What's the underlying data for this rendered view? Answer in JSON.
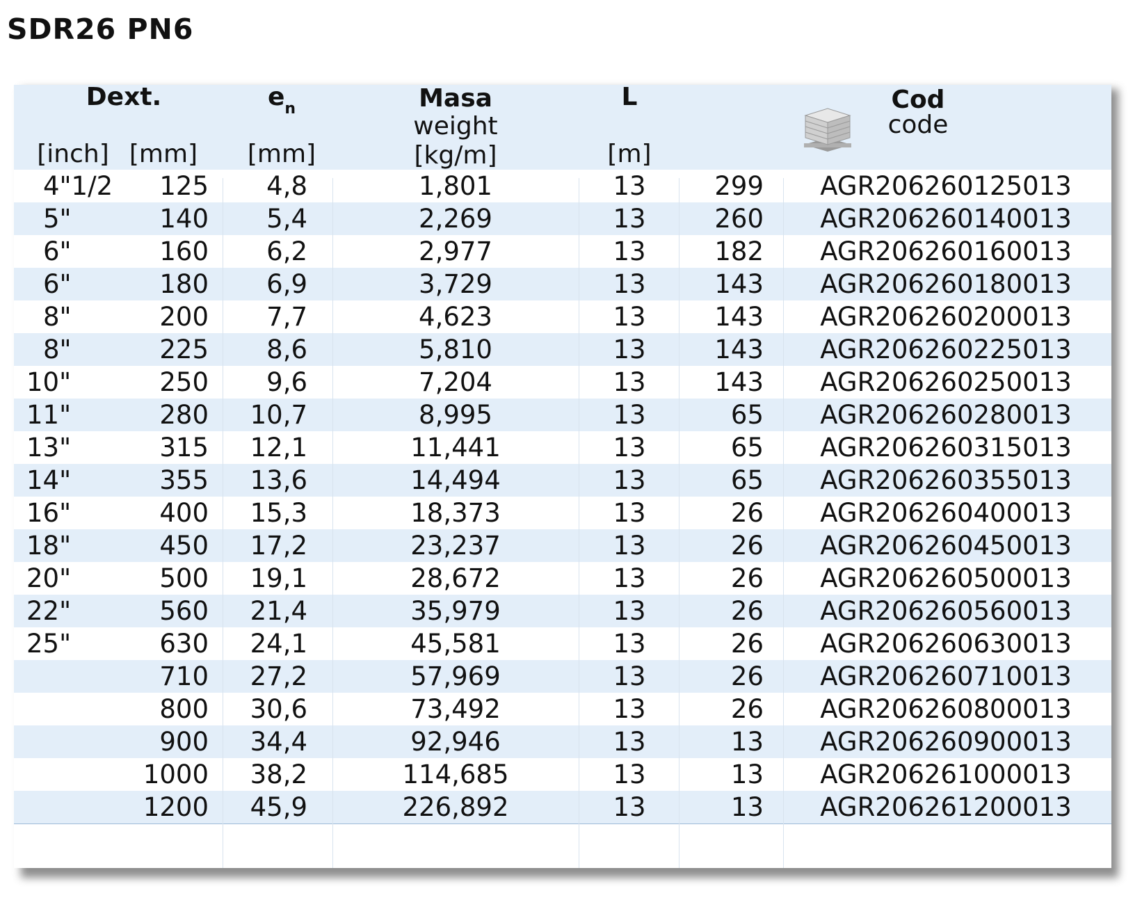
{
  "title": "SDR26 PN6",
  "header": {
    "dext": "Dext.",
    "en_main": "e",
    "en_sub": "n",
    "masa": "Masa",
    "weight": "weight",
    "inch_unit": "[inch]",
    "mm_unit": "[mm]",
    "en_unit": "[mm]",
    "kgm_unit": "[kg/m]",
    "l": "L",
    "m_unit": "[m]",
    "cod": "Cod",
    "code": "code",
    "pallet_icon": "pallet-stack-icon"
  },
  "colors": {
    "row_alt": "#e3eef9",
    "row_border": "#9dbbd8"
  },
  "rows": [
    {
      "inch": "4\"1/2",
      "mm": "125",
      "en": "4,8",
      "weight": "1,801",
      "l": "13",
      "qty": "299",
      "code": "AGR206260125013"
    },
    {
      "inch": "5\"",
      "mm": "140",
      "en": "5,4",
      "weight": "2,269",
      "l": "13",
      "qty": "260",
      "code": "AGR206260140013"
    },
    {
      "inch": "6\"",
      "mm": "160",
      "en": "6,2",
      "weight": "2,977",
      "l": "13",
      "qty": "182",
      "code": "AGR206260160013"
    },
    {
      "inch": "6\"",
      "mm": "180",
      "en": "6,9",
      "weight": "3,729",
      "l": "13",
      "qty": "143",
      "code": "AGR206260180013"
    },
    {
      "inch": "8\"",
      "mm": "200",
      "en": "7,7",
      "weight": "4,623",
      "l": "13",
      "qty": "143",
      "code": "AGR206260200013"
    },
    {
      "inch": "8\"",
      "mm": "225",
      "en": "8,6",
      "weight": "5,810",
      "l": "13",
      "qty": "143",
      "code": "AGR206260225013"
    },
    {
      "inch": "10\"",
      "mm": "250",
      "en": "9,6",
      "weight": "7,204",
      "l": "13",
      "qty": "143",
      "code": "AGR206260250013"
    },
    {
      "inch": "11\"",
      "mm": "280",
      "en": "10,7",
      "weight": "8,995",
      "l": "13",
      "qty": "65",
      "code": "AGR206260280013"
    },
    {
      "inch": "13\"",
      "mm": "315",
      "en": "12,1",
      "weight": "11,441",
      "l": "13",
      "qty": "65",
      "code": "AGR206260315013"
    },
    {
      "inch": "14\"",
      "mm": "355",
      "en": "13,6",
      "weight": "14,494",
      "l": "13",
      "qty": "65",
      "code": "AGR206260355013"
    },
    {
      "inch": "16\"",
      "mm": "400",
      "en": "15,3",
      "weight": "18,373",
      "l": "13",
      "qty": "26",
      "code": "AGR206260400013"
    },
    {
      "inch": "18\"",
      "mm": "450",
      "en": "17,2",
      "weight": "23,237",
      "l": "13",
      "qty": "26",
      "code": "AGR206260450013"
    },
    {
      "inch": "20\"",
      "mm": "500",
      "en": "19,1",
      "weight": "28,672",
      "l": "13",
      "qty": "26",
      "code": "AGR206260500013"
    },
    {
      "inch": "22\"",
      "mm": "560",
      "en": "21,4",
      "weight": "35,979",
      "l": "13",
      "qty": "26",
      "code": "AGR206260560013"
    },
    {
      "inch": "25\"",
      "mm": "630",
      "en": "24,1",
      "weight": "45,581",
      "l": "13",
      "qty": "26",
      "code": "AGR206260630013"
    },
    {
      "inch": "",
      "mm": "710",
      "en": "27,2",
      "weight": "57,969",
      "l": "13",
      "qty": "26",
      "code": "AGR206260710013"
    },
    {
      "inch": "",
      "mm": "800",
      "en": "30,6",
      "weight": "73,492",
      "l": "13",
      "qty": "26",
      "code": "AGR206260800013"
    },
    {
      "inch": "",
      "mm": "900",
      "en": "34,4",
      "weight": "92,946",
      "l": "13",
      "qty": "13",
      "code": "AGR206260900013"
    },
    {
      "inch": "",
      "mm": "1000",
      "en": "38,2",
      "weight": "114,685",
      "l": "13",
      "qty": "13",
      "code": "AGR206261000013"
    },
    {
      "inch": "",
      "mm": "1200",
      "en": "45,9",
      "weight": "226,892",
      "l": "13",
      "qty": "13",
      "code": "AGR206261200013"
    }
  ]
}
